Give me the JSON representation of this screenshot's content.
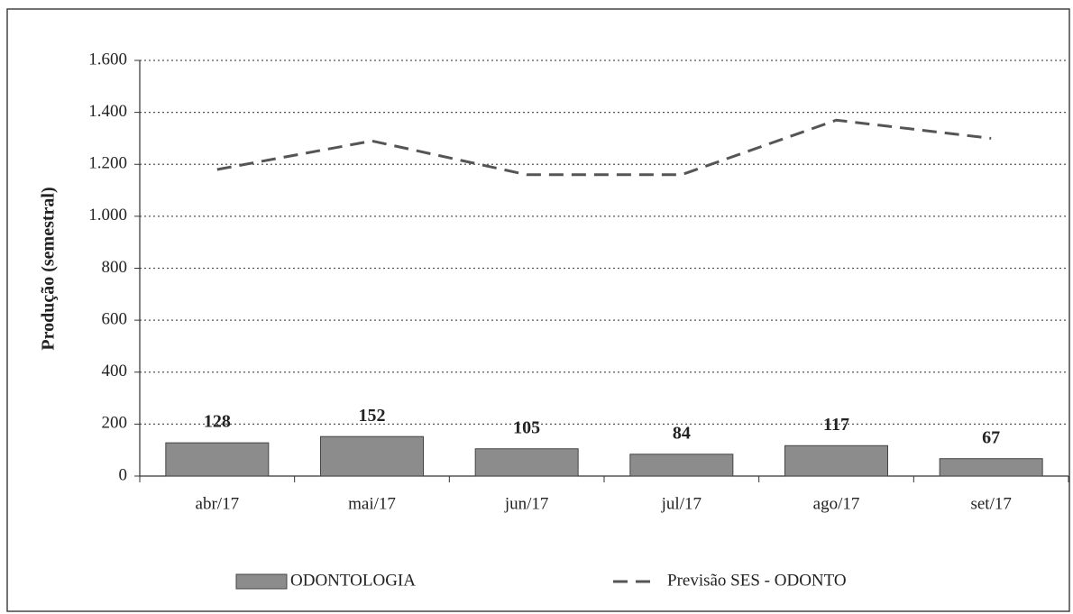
{
  "chart_data": {
    "type": "bar",
    "y_label": "Produção (semestral)",
    "categories": [
      "abr/17",
      "mai/17",
      "jun/17",
      "jul/17",
      "ago/17",
      "set/17"
    ],
    "series": [
      {
        "name": "ODONTOLOGIA",
        "type": "bar",
        "color": "#8c8c8c",
        "values": [
          128,
          152,
          105,
          84,
          117,
          67
        ]
      },
      {
        "name": "Previsão SES - ODONTO",
        "type": "line",
        "color": "#555555",
        "values": [
          1180,
          1290,
          1160,
          1160,
          1370,
          1300
        ]
      }
    ],
    "ylim": [
      0,
      1600
    ],
    "yticks": [
      0,
      200,
      400,
      600,
      800,
      {
        "value": 1000,
        "label": "1.000"
      },
      {
        "value": 1200,
        "label": "1.200"
      },
      {
        "value": 1400,
        "label": "1.400"
      },
      {
        "value": 1600,
        "label": "1.600"
      }
    ],
    "grid": true,
    "legend": "bottom"
  }
}
